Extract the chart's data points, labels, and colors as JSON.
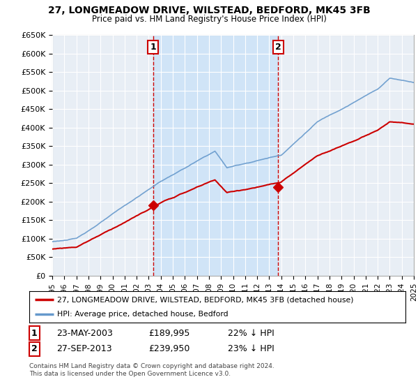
{
  "title": "27, LONGMEADOW DRIVE, WILSTEAD, BEDFORD, MK45 3FB",
  "subtitle": "Price paid vs. HM Land Registry's House Price Index (HPI)",
  "ylabel_ticks": [
    "£0",
    "£50K",
    "£100K",
    "£150K",
    "£200K",
    "£250K",
    "£300K",
    "£350K",
    "£400K",
    "£450K",
    "£500K",
    "£550K",
    "£600K",
    "£650K"
  ],
  "ytick_values": [
    0,
    50000,
    100000,
    150000,
    200000,
    250000,
    300000,
    350000,
    400000,
    450000,
    500000,
    550000,
    600000,
    650000
  ],
  "sale1": {
    "date_x": 2003.38,
    "price": 189995,
    "label": "1"
  },
  "sale2": {
    "date_x": 2013.73,
    "price": 239950,
    "label": "2"
  },
  "legend_property": "27, LONGMEADOW DRIVE, WILSTEAD, BEDFORD, MK45 3FB (detached house)",
  "legend_hpi": "HPI: Average price, detached house, Bedford",
  "footnote_copy": "Contains HM Land Registry data © Crown copyright and database right 2024.",
  "footnote_lic": "This data is licensed under the Open Government Licence v3.0.",
  "property_color": "#cc0000",
  "hpi_color": "#6699cc",
  "bg_color": "#ffffff",
  "plot_bg_color": "#e8eef5",
  "shade_color": "#d0e4f7",
  "grid_color": "#ffffff",
  "vline_color": "#cc0000",
  "xmin": 1995,
  "xmax": 2025,
  "ymin": 0,
  "ymax": 650000
}
